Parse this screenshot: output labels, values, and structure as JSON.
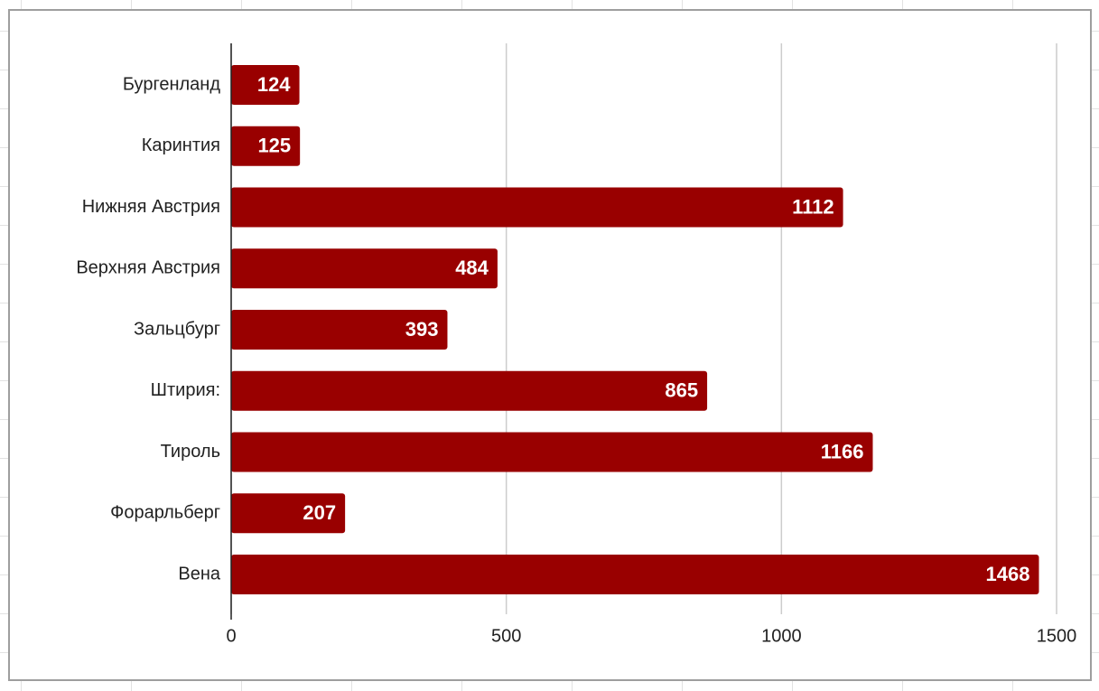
{
  "chart_data": {
    "type": "bar",
    "categories": [
      "Бургенланд",
      "Каринтия",
      "Нижняя Австрия",
      "Верхняя Австрия",
      "Зальцбург",
      "Штирия:",
      "Тироль",
      "Форарльберг",
      "Вена"
    ],
    "values": [
      124,
      125,
      1112,
      484,
      393,
      865,
      1166,
      207,
      1468
    ],
    "color": "#990000",
    "xlim": [
      0,
      1500
    ],
    "xticks": [
      0,
      500,
      1000,
      1500
    ],
    "grid": true
  }
}
